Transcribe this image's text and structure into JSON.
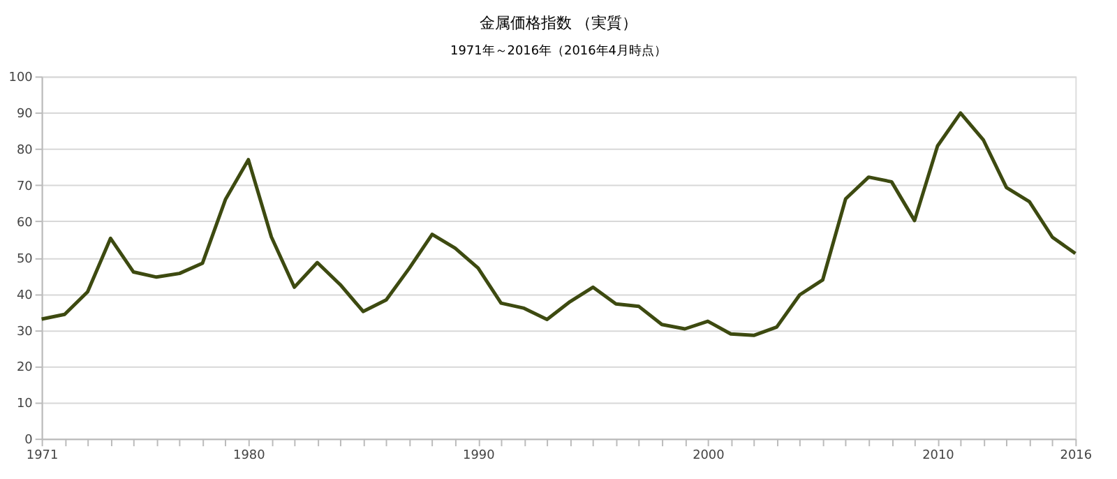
{
  "chart_data": {
    "type": "line",
    "title": "金属価格指数 （実質）",
    "subtitle": "1971年～2016年（2016年4月時点）",
    "x": [
      1971,
      1972,
      1973,
      1974,
      1975,
      1976,
      1977,
      1978,
      1979,
      1980,
      1981,
      1982,
      1983,
      1984,
      1985,
      1986,
      1987,
      1988,
      1989,
      1990,
      1991,
      1992,
      1993,
      1994,
      1995,
      1996,
      1997,
      1998,
      1999,
      2000,
      2001,
      2002,
      2003,
      2004,
      2005,
      2006,
      2007,
      2008,
      2009,
      2010,
      2011,
      2012,
      2013,
      2014,
      2015,
      2016
    ],
    "series": [
      {
        "color": "#3d4a10",
        "values": [
          33,
          34.3,
          40.5,
          55.3,
          46,
          44.6,
          45.6,
          48.4,
          66,
          77,
          55.7,
          41.8,
          48.6,
          42.5,
          35.1,
          38.3,
          47,
          56.4,
          52.6,
          47.1,
          37.4,
          36,
          32.9,
          37.8,
          41.8,
          37.2,
          36.5,
          31.5,
          30.3,
          32.4,
          28.9,
          28.5,
          30.8,
          39.7,
          43.8,
          66.2,
          72.2,
          70.9,
          60.2,
          80.8,
          89.9,
          82.4,
          69.3,
          65.4,
          55.6,
          51.1
        ]
      }
    ],
    "xlim": [
      1971,
      2016
    ],
    "xticks": [
      1971,
      {
        "value": 1972,
        "label": null
      },
      {
        "value": 1973,
        "label": null
      },
      {
        "value": 1974,
        "label": null
      },
      {
        "value": 1975,
        "label": null
      },
      {
        "value": 1976,
        "label": null
      },
      {
        "value": 1977,
        "label": null
      },
      {
        "value": 1978,
        "label": null
      },
      {
        "value": 1979,
        "label": null
      },
      1980,
      {
        "value": 1981,
        "label": null
      },
      {
        "value": 1982,
        "label": null
      },
      {
        "value": 1983,
        "label": null
      },
      {
        "value": 1984,
        "label": null
      },
      {
        "value": 1985,
        "label": null
      },
      {
        "value": 1986,
        "label": null
      },
      {
        "value": 1987,
        "label": null
      },
      {
        "value": 1988,
        "label": null
      },
      {
        "value": 1989,
        "label": null
      },
      1990,
      {
        "value": 1991,
        "label": null
      },
      {
        "value": 1992,
        "label": null
      },
      {
        "value": 1993,
        "label": null
      },
      {
        "value": 1994,
        "label": null
      },
      {
        "value": 1995,
        "label": null
      },
      {
        "value": 1996,
        "label": null
      },
      {
        "value": 1997,
        "label": null
      },
      {
        "value": 1998,
        "label": null
      },
      {
        "value": 1999,
        "label": null
      },
      2000,
      {
        "value": 2001,
        "label": null
      },
      {
        "value": 2002,
        "label": null
      },
      {
        "value": 2003,
        "label": null
      },
      {
        "value": 2004,
        "label": null
      },
      {
        "value": 2005,
        "label": null
      },
      {
        "value": 2006,
        "label": null
      },
      {
        "value": 2007,
        "label": null
      },
      {
        "value": 2008,
        "label": null
      },
      {
        "value": 2009,
        "label": null
      },
      2010,
      {
        "value": 2011,
        "label": null
      },
      {
        "value": 2012,
        "label": null
      },
      {
        "value": 2013,
        "label": null
      },
      {
        "value": 2014,
        "label": null
      },
      {
        "value": 2015,
        "label": null
      },
      2016
    ],
    "ylim": [
      0,
      100
    ],
    "yticks": [
      0,
      10,
      20,
      30,
      40,
      50,
      60,
      70,
      80,
      90,
      100
    ],
    "grid": "y",
    "marker": "none",
    "line_style": "solid"
  }
}
